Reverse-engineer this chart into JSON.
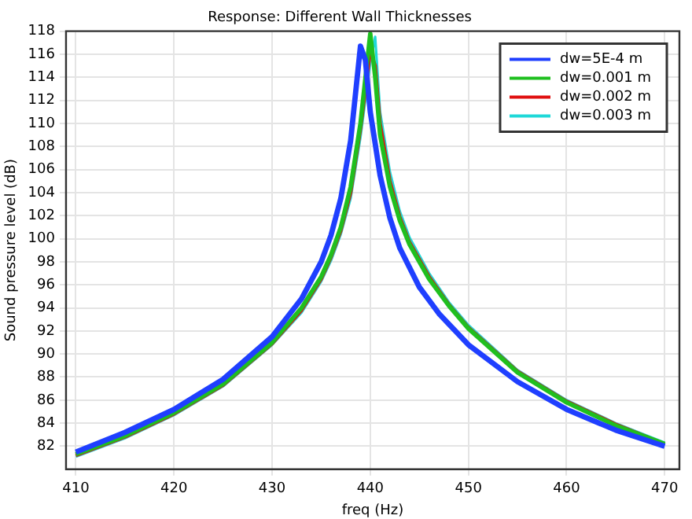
{
  "chart_data": {
    "type": "line",
    "title": "Response: Different Wall Thicknesses",
    "xlabel": "freq (Hz)",
    "ylabel": "Sound pressure level (dB)",
    "xlim": [
      409,
      471.5
    ],
    "ylim": [
      80,
      118
    ],
    "xticks": [
      410,
      420,
      430,
      440,
      450,
      460,
      470
    ],
    "yticks": [
      82,
      84,
      86,
      88,
      90,
      92,
      94,
      96,
      98,
      100,
      102,
      104,
      106,
      108,
      110,
      112,
      114,
      116,
      118
    ],
    "grid": true,
    "legend": "top right",
    "marker": "none",
    "line_style": "solid",
    "series": [
      {
        "name": "dw=5E-4 m",
        "color": "#1f3fff",
        "x": [
          410,
          415,
          420,
          425,
          430,
          433,
          435,
          436,
          437,
          438,
          439,
          439.5,
          440,
          441,
          442,
          443,
          445,
          447,
          450,
          455,
          460,
          465,
          470
        ],
        "values": [
          81.5,
          83.2,
          85.2,
          87.8,
          91.5,
          94.8,
          98,
          100.3,
          103.5,
          108.5,
          116.7,
          115.5,
          111,
          105.5,
          101.8,
          99.2,
          95.8,
          93.5,
          90.8,
          87.6,
          85.2,
          83.4,
          82
        ]
      },
      {
        "name": "dw=0.001 m",
        "color": "#1fbf1f",
        "x": [
          410,
          415,
          420,
          425,
          430,
          433,
          435,
          436,
          437,
          438,
          439,
          440,
          440.5,
          441,
          442,
          443,
          444,
          446,
          448,
          450,
          455,
          460,
          465,
          470
        ],
        "values": [
          81.3,
          82.9,
          84.9,
          87.4,
          91,
          94,
          96.7,
          98.6,
          101,
          104.5,
          110,
          117.8,
          114,
          109,
          104.5,
          101.6,
          99.5,
          96.5,
          94.2,
          92.2,
          88.4,
          85.8,
          83.8,
          82.2
        ]
      },
      {
        "name": "dw=0.002 m",
        "color": "#e01010",
        "x": [
          410,
          415,
          420,
          425,
          430,
          433,
          435,
          436,
          437,
          438,
          439,
          440,
          440.5,
          441,
          442,
          443,
          444,
          446,
          448,
          450,
          455,
          460,
          465,
          470
        ],
        "values": [
          81.2,
          82.8,
          84.8,
          87.3,
          90.9,
          93.8,
          96.5,
          98.4,
          100.7,
          104,
          109.5,
          116.3,
          115,
          110,
          105,
          101.9,
          99.7,
          96.7,
          94.3,
          92.3,
          88.5,
          85.9,
          83.9,
          82.2
        ]
      },
      {
        "name": "dw=0.003 m",
        "color": "#1fd8d8",
        "x": [
          410,
          415,
          420,
          425,
          430,
          433,
          435,
          436,
          437,
          438,
          439,
          440,
          440.5,
          441,
          442,
          443,
          444,
          446,
          448,
          450,
          455,
          460,
          465,
          470
        ],
        "values": [
          81.1,
          82.7,
          84.7,
          87.2,
          90.8,
          93.6,
          96.3,
          98.1,
          100.4,
          103.5,
          108.8,
          115.3,
          117.5,
          111,
          105.8,
          102.4,
          100.1,
          97,
          94.5,
          92.5,
          88.6,
          86,
          84,
          82.3
        ]
      }
    ]
  }
}
